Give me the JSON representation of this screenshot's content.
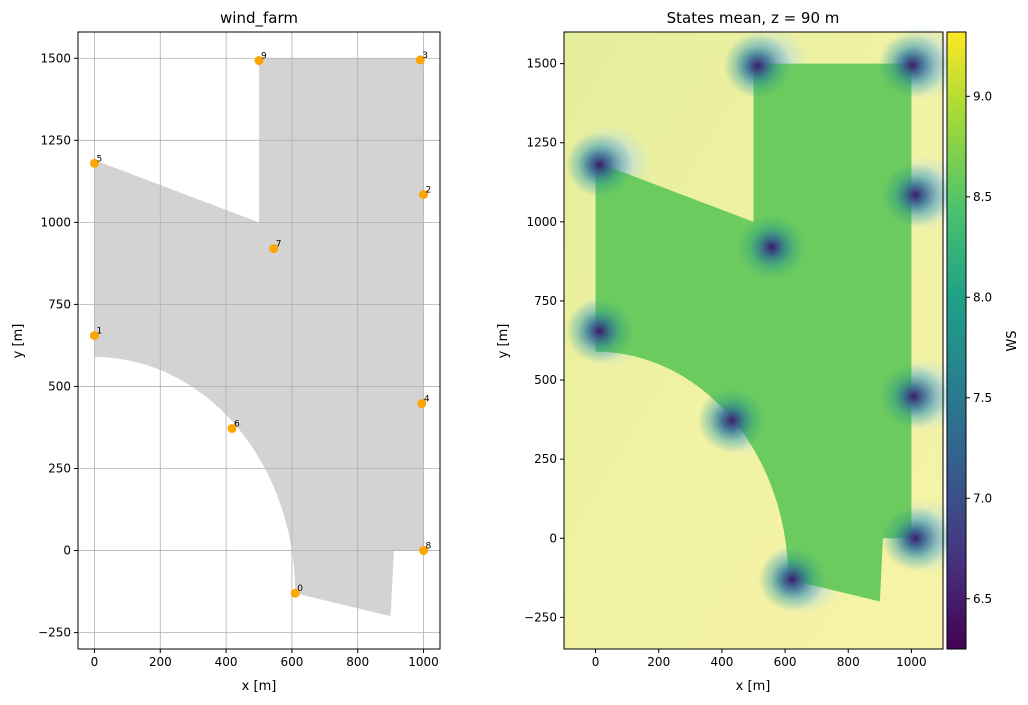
{
  "chart_data": [
    {
      "type": "scatter",
      "title": "wind_farm",
      "xlabel": "x [m]",
      "ylabel": "y [m]",
      "xlim": [
        -50,
        1050
      ],
      "ylim": [
        -300,
        1580
      ],
      "grid": true,
      "xticks": [
        0,
        200,
        400,
        600,
        800,
        1000
      ],
      "yticks": [
        -250,
        0,
        250,
        500,
        750,
        1000,
        1250,
        1500
      ],
      "point_color": "#ffa500",
      "area_color": "#d3d3d3",
      "turbines": [
        {
          "label": "0",
          "x": 610,
          "y": -130
        },
        {
          "label": "1",
          "x": 0,
          "y": 655
        },
        {
          "label": "2",
          "x": 1000,
          "y": 1085
        },
        {
          "label": "3",
          "x": 990,
          "y": 1495
        },
        {
          "label": "4",
          "x": 995,
          "y": 448
        },
        {
          "label": "5",
          "x": 0,
          "y": 1180
        },
        {
          "label": "6",
          "x": 418,
          "y": 372
        },
        {
          "label": "7",
          "x": 545,
          "y": 920
        },
        {
          "label": "8",
          "x": 1000,
          "y": 0
        },
        {
          "label": "9",
          "x": 500,
          "y": 1493
        }
      ]
    },
    {
      "type": "heatmap",
      "title": "States mean, z =  90 m",
      "xlabel": "x [m]",
      "ylabel": "y [m]",
      "xlim": [
        -100,
        1100
      ],
      "ylim": [
        -350,
        1600
      ],
      "xticks": [
        0,
        200,
        400,
        600,
        800,
        1000
      ],
      "yticks": [
        -250,
        0,
        250,
        500,
        750,
        1000,
        1250,
        1500
      ],
      "colorbar": {
        "label": "WS",
        "range": [
          6.25,
          9.32
        ],
        "ticks": [
          "6.5",
          "7.0",
          "7.5",
          "8.0",
          "8.5",
          "9.0"
        ],
        "colormap": "viridis"
      }
    }
  ]
}
